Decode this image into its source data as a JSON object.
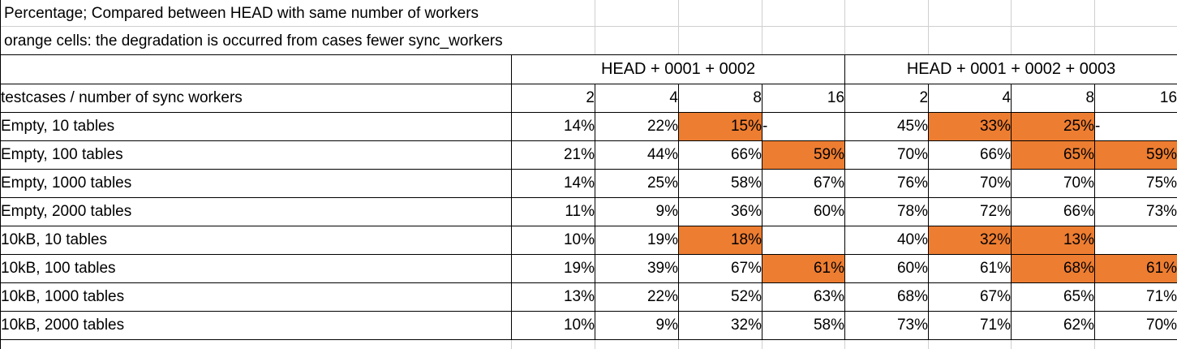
{
  "notes": {
    "line1": "Percentage; Compared between HEAD with same number of workers",
    "line2": "orange cells: the degradation is occurred from cases fewer sync_workers"
  },
  "table": {
    "corner_header": "",
    "row_axis_label": "testcases / number of sync workers",
    "groups": [
      {
        "label": "HEAD + 0001 + 0002",
        "workers": [
          "2",
          "4",
          "8",
          "16"
        ]
      },
      {
        "label": "HEAD + 0001 + 0002 + 0003",
        "workers": [
          "2",
          "4",
          "8",
          "16"
        ]
      }
    ],
    "rows": [
      {
        "label": "Empty, 10 tables",
        "values": [
          "14%",
          "22%",
          "15%",
          "-",
          "45%",
          "33%",
          "25%",
          "-"
        ],
        "orange": [
          false,
          false,
          true,
          false,
          false,
          true,
          true,
          false
        ]
      },
      {
        "label": "Empty, 100 tables",
        "values": [
          "21%",
          "44%",
          "66%",
          "59%",
          "70%",
          "66%",
          "65%",
          "59%"
        ],
        "orange": [
          false,
          false,
          false,
          true,
          false,
          false,
          true,
          true
        ]
      },
      {
        "label": "Empty, 1000 tables",
        "values": [
          "14%",
          "25%",
          "58%",
          "67%",
          "76%",
          "70%",
          "70%",
          "75%"
        ],
        "orange": [
          false,
          false,
          false,
          false,
          false,
          false,
          false,
          false
        ]
      },
      {
        "label": "Empty, 2000 tables",
        "values": [
          "11%",
          "9%",
          "36%",
          "60%",
          "78%",
          "72%",
          "66%",
          "73%"
        ],
        "orange": [
          false,
          false,
          false,
          false,
          false,
          false,
          false,
          false
        ]
      },
      {
        "label": "10kB, 10 tables",
        "values": [
          "10%",
          "19%",
          "18%",
          "",
          "40%",
          "32%",
          "13%",
          ""
        ],
        "orange": [
          false,
          false,
          true,
          false,
          false,
          true,
          true,
          false
        ]
      },
      {
        "label": "10kB, 100 tables",
        "values": [
          "19%",
          "39%",
          "67%",
          "61%",
          "60%",
          "61%",
          "68%",
          "61%"
        ],
        "orange": [
          false,
          false,
          false,
          true,
          false,
          false,
          true,
          true
        ]
      },
      {
        "label": "10kB, 1000 tables",
        "values": [
          "13%",
          "22%",
          "52%",
          "63%",
          "68%",
          "67%",
          "65%",
          "71%"
        ],
        "orange": [
          false,
          false,
          false,
          false,
          false,
          false,
          false,
          false
        ]
      },
      {
        "label": "10kB, 2000 tables",
        "values": [
          "10%",
          "9%",
          "32%",
          "58%",
          "73%",
          "71%",
          "62%",
          "70%"
        ],
        "orange": [
          false,
          false,
          false,
          false,
          false,
          false,
          false,
          false
        ]
      }
    ]
  },
  "colors": {
    "orange": "#ED7D31",
    "gridline": "#CFCFCF",
    "border": "#000000",
    "text": "#000000",
    "background": "#FFFFFF"
  }
}
